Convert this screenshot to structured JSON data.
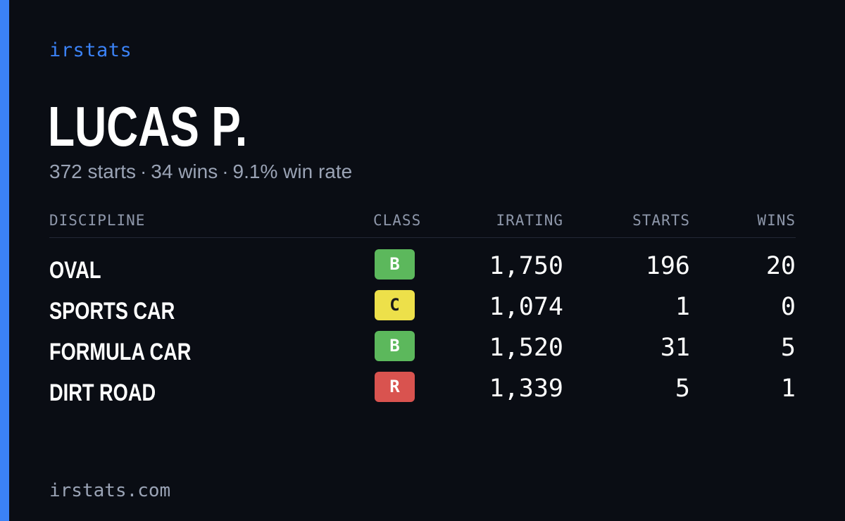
{
  "brand": "irstats",
  "driver": {
    "name": "LUCAS P.",
    "starts_text": "372 starts",
    "wins_text": "34 wins",
    "win_rate_text": "9.1% win rate",
    "separator": "·"
  },
  "table": {
    "headers": {
      "discipline": "DISCIPLINE",
      "class": "CLASS",
      "irating": "IRATING",
      "starts": "STARTS",
      "wins": "WINS"
    },
    "rows": [
      {
        "discipline": "OVAL",
        "class": "B",
        "class_color": "#5cb85c",
        "class_text_color": "#ffffff",
        "irating": "1,750",
        "starts": "196",
        "wins": "20"
      },
      {
        "discipline": "SPORTS CAR",
        "class": "C",
        "class_color": "#ede04a",
        "class_text_color": "#1a1a1a",
        "irating": "1,074",
        "starts": "1",
        "wins": "0"
      },
      {
        "discipline": "FORMULA CAR",
        "class": "B",
        "class_color": "#5cb85c",
        "class_text_color": "#ffffff",
        "irating": "1,520",
        "starts": "31",
        "wins": "5"
      },
      {
        "discipline": "DIRT ROAD",
        "class": "R",
        "class_color": "#d9534f",
        "class_text_color": "#ffffff",
        "irating": "1,339",
        "starts": "5",
        "wins": "1"
      }
    ]
  },
  "footer": "irstats.com",
  "colors": {
    "background": "#0a0d14",
    "accent": "#3b82f6",
    "muted_text": "#9aa3b5"
  }
}
